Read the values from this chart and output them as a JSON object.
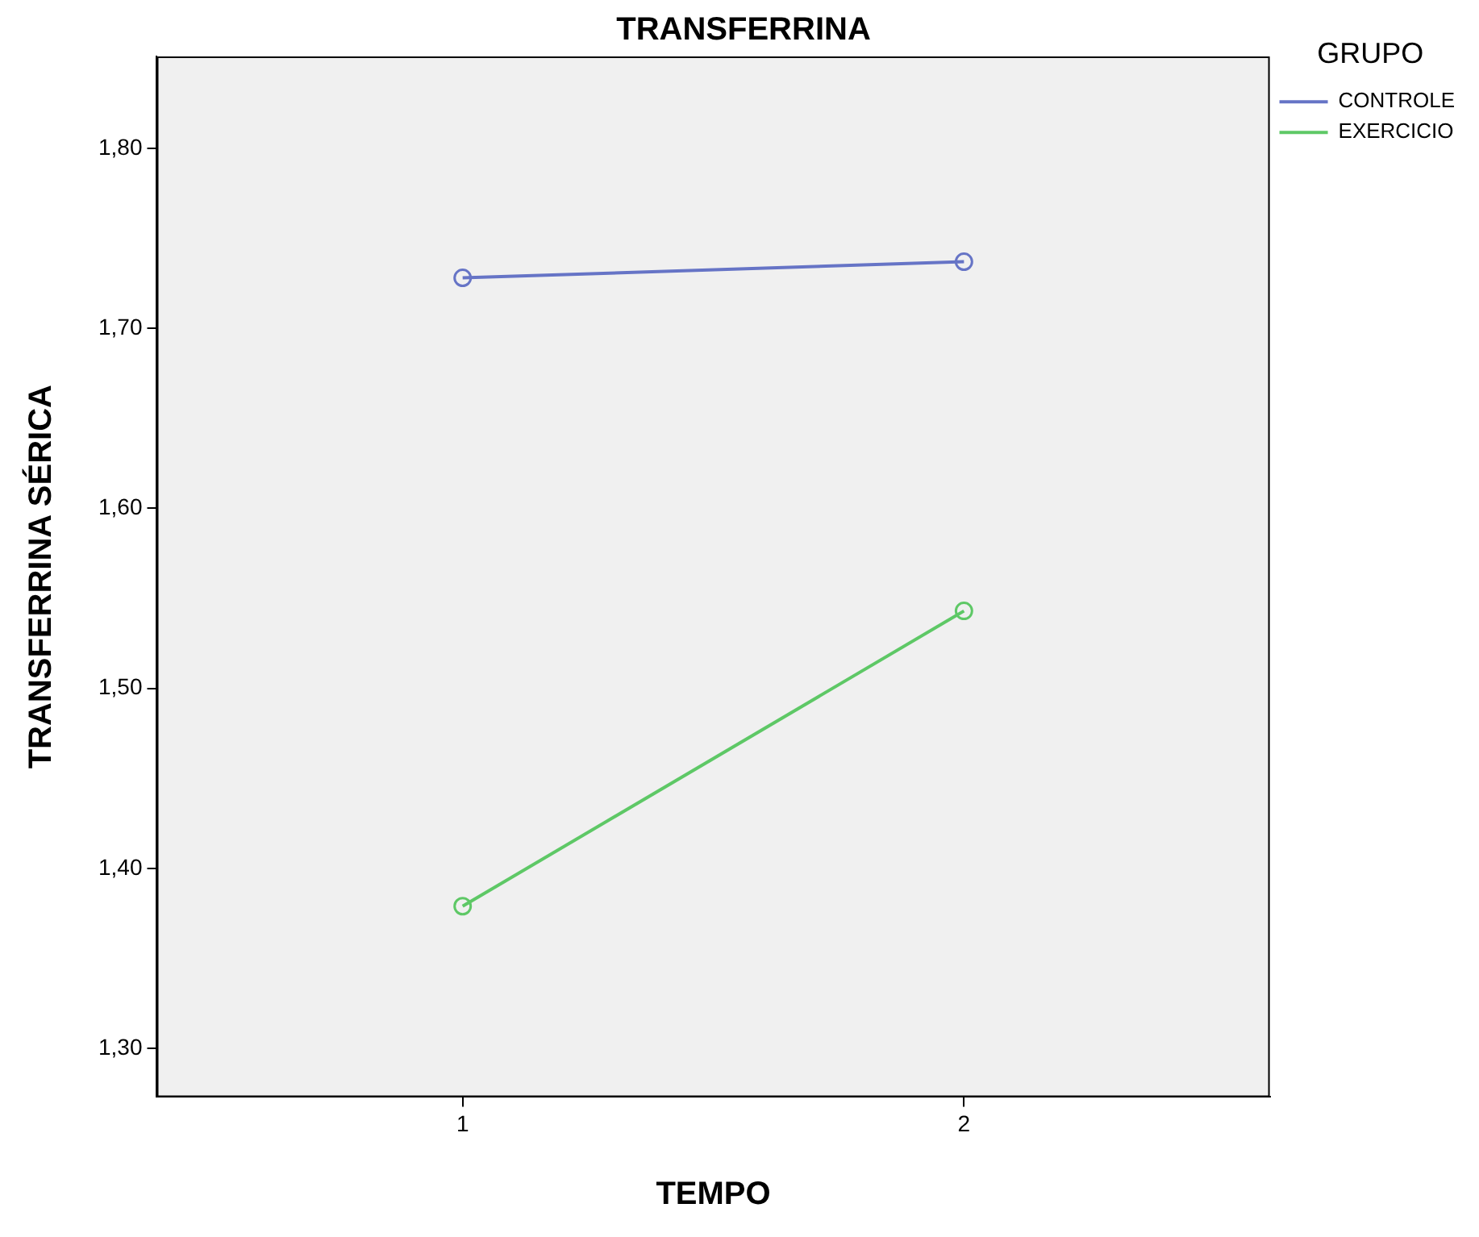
{
  "chart_data": {
    "type": "line",
    "title": "TRANSFERRINA",
    "xlabel": "TEMPO",
    "ylabel": "TRANSFERRINA SÉRICA",
    "legend_title": "GRUPO",
    "x": [
      1,
      2
    ],
    "series": [
      {
        "name": "CONTROLE",
        "color": "#6674c6",
        "values": [
          1.728,
          1.737
        ]
      },
      {
        "name": "EXERCICIO",
        "color": "#5ec866",
        "values": [
          1.379,
          1.543
        ]
      }
    ],
    "xlim": [
      0.39,
      2.61
    ],
    "xticks": [
      1,
      2
    ],
    "ylim": [
      1.273,
      1.851
    ],
    "yticks": [
      {
        "value": 1.3,
        "label": "1,30"
      },
      {
        "value": 1.4,
        "label": "1,40"
      },
      {
        "value": 1.5,
        "label": "1,50"
      },
      {
        "value": 1.6,
        "label": "1,60"
      },
      {
        "value": 1.7,
        "label": "1,70"
      },
      {
        "value": 1.8,
        "label": "1,80"
      }
    ],
    "grid": false,
    "legend": "top right",
    "marker": "circle",
    "line_style": "solid"
  }
}
